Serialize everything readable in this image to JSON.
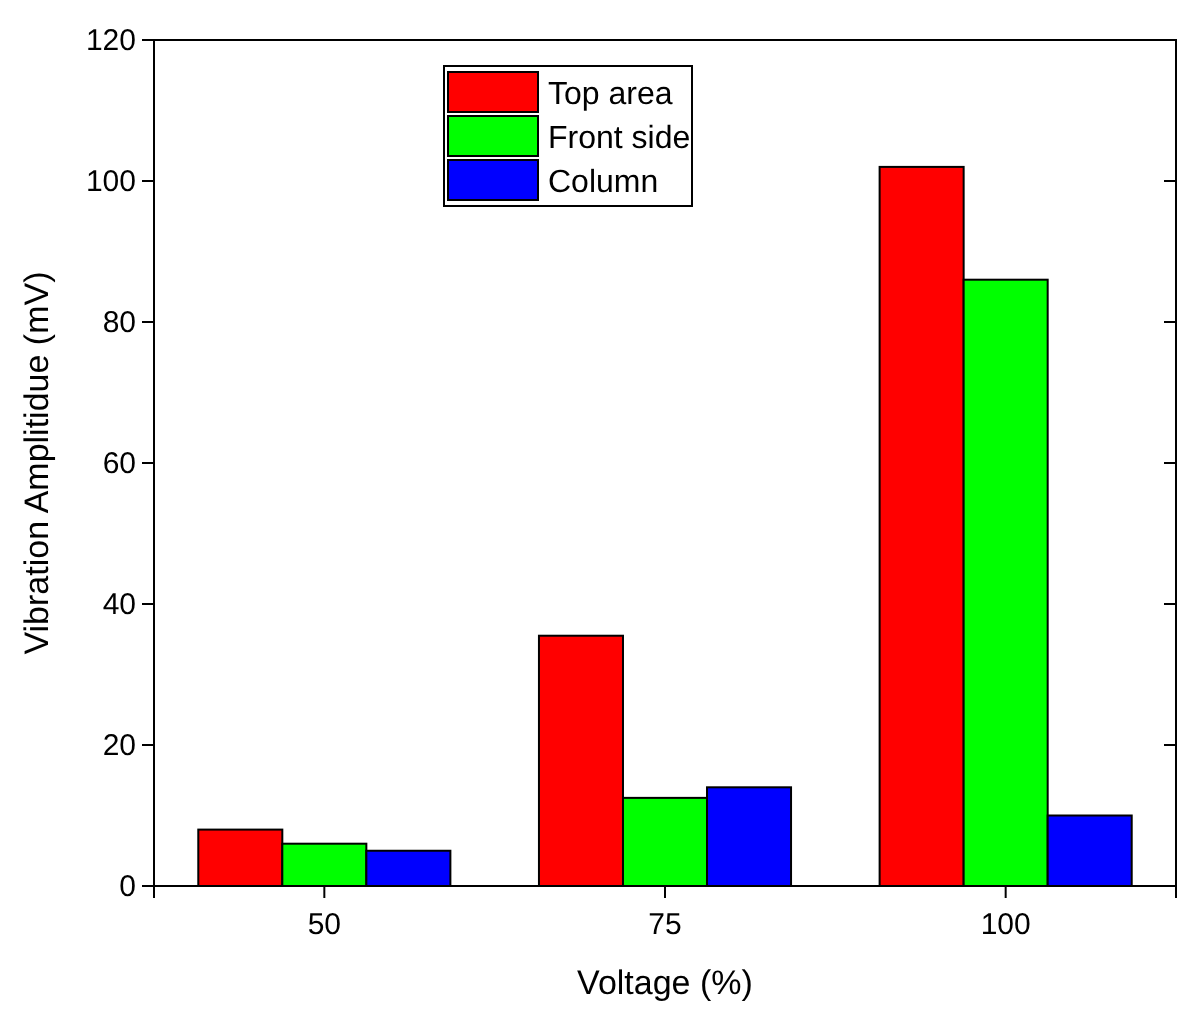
{
  "chart_data": {
    "type": "bar",
    "xlabel": "Voltage (%)",
    "ylabel": "Vibration Amplitidue (mV)",
    "categories": [
      "50",
      "75",
      "100"
    ],
    "series": [
      {
        "name": "Top area",
        "color": "#ff0000",
        "values": [
          8,
          35.5,
          102
        ]
      },
      {
        "name": "Front side",
        "color": "#00ff00",
        "values": [
          6,
          12.5,
          86
        ]
      },
      {
        "name": "Column",
        "color": "#0000ff",
        "values": [
          5,
          14,
          10
        ]
      }
    ],
    "ylim": [
      0,
      120
    ],
    "yticks": [
      0,
      20,
      40,
      60,
      80,
      100,
      120
    ],
    "grid": false,
    "legend": "top"
  }
}
